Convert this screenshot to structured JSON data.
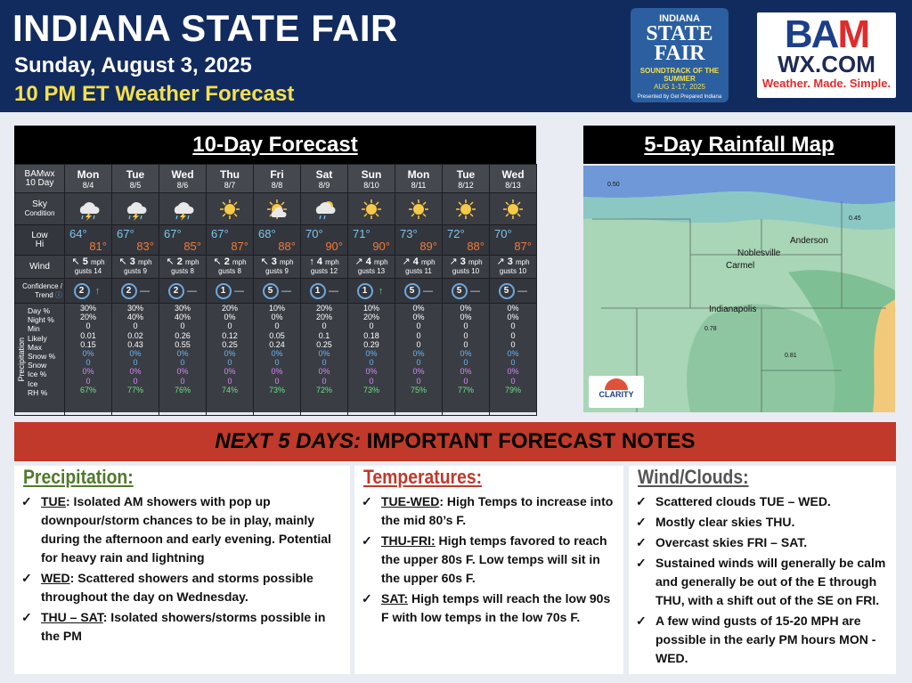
{
  "header": {
    "title": "INDIANA STATE FAIR",
    "date": "Sunday, August 3, 2025",
    "subtitle": "10 PM ET Weather Forecast",
    "fair_logo": {
      "line1": "INDIANA",
      "line2": "STATE",
      "line3": "FAIR",
      "line4": "SOUNDTRACK OF THE SUMMER",
      "line5": "AUG 1-17, 2025",
      "line6": "Presented by Get Prepared Indiana"
    },
    "bam_logo": {
      "line1a": "BA",
      "line1b": "M",
      "line2": "WX.COM",
      "tagline": "Weather. Made. Simple."
    }
  },
  "forecast": {
    "panel_title": "10-Day Forecast",
    "corner": "BAMwx",
    "corner2": "10 Day",
    "row_labels": {
      "sky": "Sky",
      "sky2": "Condition",
      "low": "Low",
      "hi": "Hi",
      "wind": "Wind",
      "conf": "Confidence /",
      "conf2": "Trend",
      "precip_side": "Precipitation"
    },
    "precip_labels": [
      "Day %",
      "Night %",
      "Min",
      "Likely",
      "Max",
      "Snow %",
      "Snow",
      "Ice %",
      "Ice",
      "RH %"
    ],
    "days": [
      {
        "day": "Mon",
        "date": "8/4",
        "sky": "storm-cloud",
        "low": "64°",
        "hi": "81°",
        "wind_dir": "↖",
        "wind": "5",
        "gust": "gusts 14",
        "conf": "2",
        "trend": "↑",
        "p": [
          "30%",
          "20%",
          "0",
          "0.01",
          "0.15",
          "0%",
          "0",
          "0%",
          "0",
          "67%"
        ]
      },
      {
        "day": "Tue",
        "date": "8/5",
        "sky": "storm-cloud",
        "low": "67°",
        "hi": "83°",
        "wind_dir": "↖",
        "wind": "3",
        "gust": "gusts 9",
        "conf": "2",
        "trend": "—",
        "p": [
          "30%",
          "40%",
          "0",
          "0.02",
          "0.43",
          "0%",
          "0",
          "0%",
          "0",
          "77%"
        ]
      },
      {
        "day": "Wed",
        "date": "8/6",
        "sky": "storm-cloud",
        "low": "67°",
        "hi": "85°",
        "wind_dir": "↖",
        "wind": "2",
        "gust": "gusts 8",
        "conf": "2",
        "trend": "—",
        "p": [
          "30%",
          "40%",
          "0",
          "0.26",
          "0.55",
          "0%",
          "0",
          "0%",
          "0",
          "76%"
        ]
      },
      {
        "day": "Thu",
        "date": "8/7",
        "sky": "sun",
        "low": "67°",
        "hi": "87°",
        "wind_dir": "↖",
        "wind": "2",
        "gust": "gusts 8",
        "conf": "1",
        "trend": "—",
        "p": [
          "20%",
          "0%",
          "0",
          "0.12",
          "0.25",
          "0%",
          "0",
          "0%",
          "0",
          "74%"
        ]
      },
      {
        "day": "Fri",
        "date": "8/8",
        "sky": "partly-cloudy",
        "low": "68°",
        "hi": "88°",
        "wind_dir": "↖",
        "wind": "3",
        "gust": "gusts 9",
        "conf": "5",
        "trend": "—",
        "p": [
          "10%",
          "0%",
          "0",
          "0.05",
          "0.24",
          "0%",
          "0",
          "0%",
          "0",
          "73%"
        ]
      },
      {
        "day": "Sat",
        "date": "8/9",
        "sky": "shower-cloud",
        "low": "70°",
        "hi": "90°",
        "wind_dir": "↑",
        "wind": "4",
        "gust": "gusts 12",
        "conf": "1",
        "trend": "—",
        "p": [
          "20%",
          "20%",
          "0",
          "0.1",
          "0.25",
          "0%",
          "0",
          "0%",
          "0",
          "72%"
        ]
      },
      {
        "day": "Sun",
        "date": "8/10",
        "sky": "sun",
        "low": "71°",
        "hi": "90°",
        "wind_dir": "↗",
        "wind": "4",
        "gust": "gusts 13",
        "conf": "1",
        "trend": "↑",
        "p": [
          "10%",
          "20%",
          "0",
          "0.18",
          "0.29",
          "0%",
          "0",
          "0%",
          "0",
          "73%"
        ]
      },
      {
        "day": "Mon",
        "date": "8/11",
        "sky": "sun",
        "low": "73°",
        "hi": "89°",
        "wind_dir": "↗",
        "wind": "4",
        "gust": "gusts 11",
        "conf": "5",
        "trend": "—",
        "p": [
          "0%",
          "0%",
          "0",
          "0",
          "0",
          "0%",
          "0",
          "0%",
          "0",
          "75%"
        ]
      },
      {
        "day": "Tue",
        "date": "8/12",
        "sky": "sun",
        "low": "72°",
        "hi": "88°",
        "wind_dir": "↗",
        "wind": "3",
        "gust": "gusts 10",
        "conf": "5",
        "trend": "—",
        "p": [
          "0%",
          "0%",
          "0",
          "0",
          "0",
          "0%",
          "0",
          "0%",
          "0",
          "77%"
        ]
      },
      {
        "day": "Wed",
        "date": "8/13",
        "sky": "sun",
        "low": "70°",
        "hi": "87°",
        "wind_dir": "↗",
        "wind": "3",
        "gust": "gusts 10",
        "conf": "5",
        "trend": "—",
        "p": [
          "0%",
          "0%",
          "0",
          "0",
          "0",
          "0%",
          "0",
          "0%",
          "0",
          "79%"
        ]
      }
    ],
    "mph": "mph"
  },
  "map": {
    "panel_title": "5-Day Rainfall Map",
    "cities": [
      "Anderson",
      "Noblesville",
      "Carmel",
      "Indianapolis"
    ],
    "values": [
      "0.50",
      "0.45",
      "0.78",
      "0.81"
    ],
    "logo": "CLARITY"
  },
  "notes": {
    "banner_italic": "NEXT 5 DAYS:",
    "banner_rest": " IMPORTANT FORECAST NOTES",
    "precip": {
      "title": "Precipitation:",
      "color": "#4f7a2a",
      "items": [
        {
          "lead": "TUE",
          "text": ": Isolated AM showers with pop up downpour/storm chances to be in play, mainly during the afternoon and early evening. Potential for heavy rain and lightning"
        },
        {
          "lead": "WED",
          "text": ": Scattered showers and storms possible throughout the day on Wednesday."
        },
        {
          "lead": "THU – SAT",
          "text": ": Isolated showers/storms possible in the PM"
        }
      ]
    },
    "temps": {
      "title": "Temperatures:",
      "color": "#c0392b",
      "items": [
        {
          "lead": "TUE-WED",
          "text": ": High Temps to increase into the mid 80’s F."
        },
        {
          "lead": "THU-FRI:",
          "text": " High temps favored to reach the upper 80s F. Low temps will sit in the upper 60s F."
        },
        {
          "lead": "SAT:",
          "text": " High temps will reach the low 90s F with low temps in the low 70s F."
        }
      ]
    },
    "wind": {
      "title": "Wind/Clouds:",
      "color": "#555555",
      "items": [
        {
          "lead": "",
          "text": "Scattered clouds TUE – WED."
        },
        {
          "lead": "",
          "text": "Mostly clear skies THU."
        },
        {
          "lead": "",
          "text": "Overcast skies FRI – SAT."
        },
        {
          "lead": "",
          "text": "Sustained winds will generally be calm and generally be out of the E through THU, with a shift out of the SE on FRI."
        },
        {
          "lead": "",
          "text": "A few wind gusts of 15-20 MPH are possible in the early PM hours MON - WED."
        }
      ]
    }
  }
}
